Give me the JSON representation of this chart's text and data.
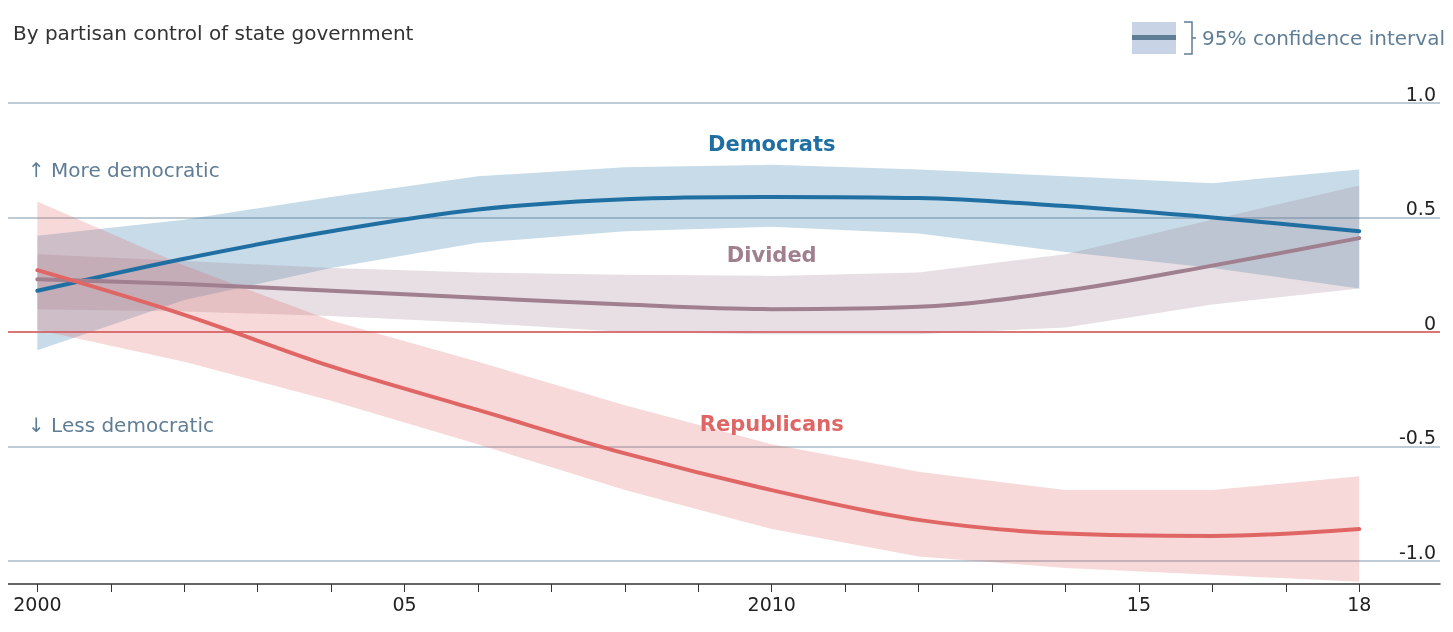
{
  "chart_data": {
    "type": "line",
    "subtitle": "By partisan control of state government",
    "x": [
      2000,
      2002,
      2004,
      2006,
      2008,
      2010,
      2012,
      2014,
      2016,
      2018
    ],
    "series": [
      {
        "name": "Democrats",
        "color": "#1f6fa3",
        "values": [
          0.18,
          0.32,
          0.44,
          0.535,
          0.58,
          0.59,
          0.585,
          0.55,
          0.5,
          0.44
        ],
        "lower": [
          -0.08,
          0.14,
          0.28,
          0.39,
          0.44,
          0.46,
          0.43,
          0.35,
          0.28,
          0.19
        ],
        "upper": [
          0.42,
          0.49,
          0.59,
          0.68,
          0.72,
          0.73,
          0.71,
          0.68,
          0.65,
          0.71
        ]
      },
      {
        "name": "Divided",
        "color": "#a07f8e",
        "values": [
          0.23,
          0.21,
          0.18,
          0.15,
          0.12,
          0.1,
          0.11,
          0.18,
          0.29,
          0.41
        ],
        "lower": [
          0.1,
          0.09,
          0.07,
          0.04,
          0.0,
          -0.01,
          -0.01,
          0.02,
          0.12,
          0.19
        ],
        "upper": [
          0.34,
          0.31,
          0.28,
          0.26,
          0.25,
          0.245,
          0.26,
          0.34,
          0.49,
          0.64
        ]
      },
      {
        "name": "Republicans",
        "color": "#e06666",
        "values": [
          0.27,
          0.075,
          -0.15,
          -0.34,
          -0.53,
          -0.69,
          -0.82,
          -0.88,
          -0.89,
          -0.86
        ],
        "lower": [
          0.01,
          -0.13,
          -0.3,
          -0.49,
          -0.69,
          -0.86,
          -0.98,
          -1.03,
          -1.06,
          -1.09
        ],
        "upper": [
          0.57,
          0.29,
          0.05,
          -0.13,
          -0.32,
          -0.49,
          -0.61,
          -0.69,
          -0.69,
          -0.63
        ]
      }
    ],
    "xlim": [
      1999.6,
      2019.1
    ],
    "xticks": [
      {
        "value": 2000,
        "label": "2000"
      },
      {
        "value": 2001,
        "label": null
      },
      {
        "value": 2002,
        "label": null
      },
      {
        "value": 2003,
        "label": null
      },
      {
        "value": 2004,
        "label": null
      },
      {
        "value": 2005,
        "label": "05"
      },
      {
        "value": 2006,
        "label": null
      },
      {
        "value": 2007,
        "label": null
      },
      {
        "value": 2008,
        "label": null
      },
      {
        "value": 2009,
        "label": null
      },
      {
        "value": 2010,
        "label": "2010"
      },
      {
        "value": 2011,
        "label": null
      },
      {
        "value": 2012,
        "label": null
      },
      {
        "value": 2013,
        "label": null
      },
      {
        "value": 2014,
        "label": null
      },
      {
        "value": 2015,
        "label": "15"
      },
      {
        "value": 2016,
        "label": null
      },
      {
        "value": 2017,
        "label": null
      },
      {
        "value": 2018,
        "label": "18"
      }
    ],
    "ylim": [
      -1.1,
      1
    ],
    "yticks": [
      {
        "value": -1,
        "label": "-1.0"
      },
      -0.5,
      0,
      0.5,
      {
        "value": 1,
        "label": "1.0"
      }
    ],
    "grid": "y",
    "ref_lines": [
      {
        "axis": "y",
        "value": 0,
        "color": "#e05a5a"
      }
    ],
    "annotations": [
      "↑ More democratic",
      "↓ Less democratic",
      "95% confidence interval"
    ]
  }
}
